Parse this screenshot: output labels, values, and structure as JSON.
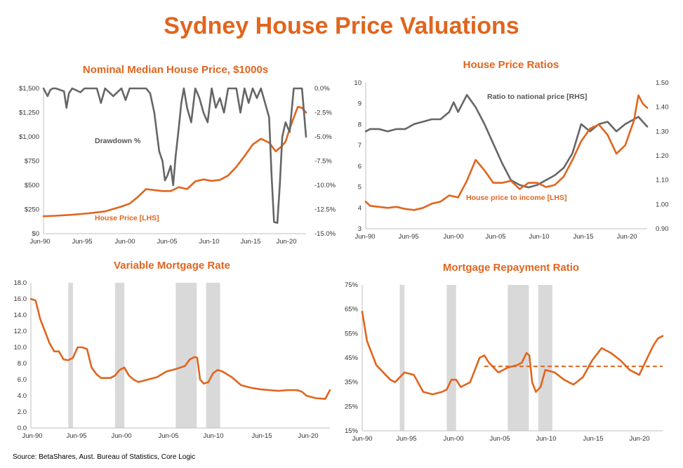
{
  "title": "Sydney House Price Valuations",
  "source": "Source: BetaShares, Aust. Bureau of Statistics, Core Logic",
  "colors": {
    "orange": "#e0651e",
    "gray": "#666666",
    "shade": "#d9d9d9",
    "axis": "#bfbfbf"
  },
  "chart_data": [
    {
      "id": "price",
      "type": "line",
      "title": "Nominal Median House Price, $1000s",
      "x_ticks": [
        "Jun-90",
        "Jun-95",
        "Jun-00",
        "Jun-05",
        "Jun-10",
        "Jun-15",
        "Jun-20"
      ],
      "x_range": [
        1990.5,
        2022.5
      ],
      "y_left_ticks": [
        "$0",
        "$250",
        "$500",
        "$750",
        "$1,000",
        "$1,250",
        "$1,500"
      ],
      "y_left_range": [
        0,
        1500
      ],
      "y_right_ticks": [
        "0.0%",
        "-2.5%",
        "-5.0%",
        "-7.5%",
        "-10.0%",
        "-12.5%",
        "-15.0%"
      ],
      "y_right_range": [
        -15,
        0
      ],
      "annotations": [
        {
          "text": "Drawdown %",
          "series": "drawdown"
        },
        {
          "text": "House Price [LHS]",
          "series": "price"
        }
      ],
      "series": [
        {
          "name": "House Price [LHS]",
          "axis": "left",
          "color": "#e0651e",
          "x": [
            1990.5,
            1992,
            1994,
            1996,
            1998,
            2000,
            2001,
            2002,
            2003,
            2004,
            2005,
            2006,
            2007,
            2008,
            2009,
            2010,
            2011,
            2012,
            2013,
            2014,
            2015,
            2016,
            2017,
            2018,
            2018.8,
            2019.5,
            2020,
            2020.5,
            2021,
            2021.5,
            2022,
            2022.5
          ],
          "y": [
            180,
            185,
            195,
            210,
            230,
            280,
            310,
            380,
            460,
            450,
            440,
            440,
            480,
            460,
            540,
            560,
            545,
            555,
            600,
            690,
            800,
            920,
            980,
            940,
            850,
            900,
            950,
            1080,
            1200,
            1310,
            1300,
            1250
          ]
        },
        {
          "name": "Drawdown %",
          "axis": "right",
          "color": "#666666",
          "x": [
            1990.5,
            1991,
            1991.3,
            1991.6,
            1992,
            1993,
            1993.3,
            1993.6,
            1994,
            1995,
            1995.5,
            1996,
            1997,
            1997.5,
            1998,
            1999,
            2000,
            2000.5,
            2001,
            2002,
            2003,
            2003.5,
            2004,
            2004.3,
            2004.6,
            2005,
            2005.3,
            2005.6,
            2006,
            2006.3,
            2006.6,
            2007,
            2007.3,
            2007.6,
            2008,
            2008.5,
            2009,
            2009.5,
            2010,
            2010.5,
            2011,
            2011.5,
            2012,
            2012.5,
            2013,
            2014,
            2014.5,
            2015,
            2015.5,
            2016,
            2016.5,
            2017,
            2017.5,
            2018,
            2018.3,
            2018.6,
            2019,
            2019.3,
            2019.6,
            2020,
            2020.5,
            2021,
            2021.5,
            2022,
            2022.5
          ],
          "y": [
            0,
            -0.8,
            -0.2,
            0,
            0,
            -0.3,
            -2.0,
            -0.5,
            0,
            -0.4,
            0,
            0,
            0,
            -1.5,
            0,
            -0.8,
            0,
            -1.2,
            0,
            0,
            0,
            -0.5,
            -2.5,
            -4.5,
            -6.5,
            -7.5,
            -9.5,
            -9.0,
            -8.0,
            -10.0,
            -7.0,
            -4.0,
            -1.5,
            0,
            -2.0,
            -3.5,
            0,
            -1.0,
            -2.5,
            -3.5,
            0,
            -2.0,
            -1.0,
            -2.5,
            0,
            0,
            -2.5,
            0,
            -1.5,
            0,
            -1.0,
            0,
            -1.5,
            -3.0,
            -9.0,
            -13.8,
            -13.9,
            -10.0,
            -5.0,
            -3.5,
            -4.5,
            0,
            0,
            0,
            -5.0
          ]
        }
      ]
    },
    {
      "id": "ratios",
      "type": "line",
      "title": "House Price Ratios",
      "x_ticks": [
        "Jun-90",
        "Jun-95",
        "Jun-00",
        "Jun-05",
        "Jun-10",
        "Jun-15",
        "Jun-20"
      ],
      "x_range": [
        1990.5,
        2022.5
      ],
      "y_left_ticks": [
        "3",
        "4",
        "5",
        "6",
        "7",
        "8",
        "9",
        "10"
      ],
      "y_left_range": [
        3,
        10
      ],
      "y_right_ticks": [
        "0.90",
        "1.00",
        "1.10",
        "1.20",
        "1.30",
        "1.40",
        "1.50"
      ],
      "y_right_range": [
        0.9,
        1.5
      ],
      "annotations": [
        {
          "text": "Ratio to national price [RHS]",
          "series": "ratio"
        },
        {
          "text": "House price to income  [LHS]",
          "series": "income"
        }
      ],
      "series": [
        {
          "name": "Ratio to national price [RHS]",
          "axis": "right",
          "color": "#666666",
          "x": [
            1990.5,
            1991,
            1992,
            1993,
            1994,
            1995,
            1996,
            1997,
            1998,
            1999,
            2000,
            2000.5,
            2001,
            2002,
            2003,
            2004,
            2005,
            2006,
            2007,
            2008,
            2009,
            2010,
            2011,
            2012,
            2013,
            2014,
            2015,
            2016,
            2017,
            2018,
            2019,
            2020,
            2021,
            2021.5,
            2022,
            2022.5
          ],
          "y": [
            1.3,
            1.31,
            1.31,
            1.3,
            1.31,
            1.31,
            1.33,
            1.34,
            1.35,
            1.35,
            1.38,
            1.42,
            1.38,
            1.45,
            1.4,
            1.33,
            1.25,
            1.17,
            1.1,
            1.08,
            1.07,
            1.08,
            1.1,
            1.12,
            1.15,
            1.21,
            1.33,
            1.3,
            1.33,
            1.34,
            1.3,
            1.33,
            1.35,
            1.36,
            1.34,
            1.32
          ]
        },
        {
          "name": "House price to income  [LHS]",
          "axis": "left",
          "color": "#e0651e",
          "x": [
            1990.5,
            1991,
            1992,
            1993,
            1994,
            1995,
            1996,
            1997,
            1998,
            1999,
            2000,
            2001,
            2002,
            2003,
            2004,
            2005,
            2006,
            2007,
            2008,
            2009,
            2010,
            2011,
            2012,
            2013,
            2014,
            2015,
            2016,
            2017,
            2018,
            2019,
            2020,
            2021,
            2021.5,
            2022,
            2022.5
          ],
          "y": [
            4.3,
            4.1,
            4.05,
            4.0,
            4.05,
            3.95,
            3.9,
            4.0,
            4.2,
            4.3,
            4.6,
            4.5,
            5.3,
            6.3,
            5.8,
            5.2,
            5.2,
            5.3,
            4.9,
            5.2,
            5.2,
            5.0,
            5.1,
            5.5,
            6.3,
            7.2,
            7.8,
            8.0,
            7.5,
            6.6,
            7.0,
            8.2,
            9.4,
            9.0,
            8.8
          ]
        }
      ]
    },
    {
      "id": "mortgage_rate",
      "type": "line",
      "title": "Variable Mortgage Rate",
      "x_ticks": [
        "Jun-90",
        "Jun-95",
        "Jun-00",
        "Jun-05",
        "Jun-10",
        "Jun-15",
        "Jun-20"
      ],
      "x_range": [
        1990.5,
        2022.5
      ],
      "y_ticks": [
        "0.0",
        "2.0",
        "4.0",
        "6.0",
        "8.0",
        "10.0",
        "12.0",
        "14.0",
        "16.0",
        "18.0"
      ],
      "y_range": [
        0,
        18
      ],
      "shaded_periods": [
        [
          1994.5,
          1995.0
        ],
        [
          1999.5,
          2000.5
        ],
        [
          2006.0,
          2008.25
        ],
        [
          2009.25,
          2010.75
        ]
      ],
      "series": [
        {
          "name": "Variable Mortgage Rate",
          "color": "#e0651e",
          "x": [
            1990.5,
            1991,
            1991.5,
            1992,
            1992.5,
            1993,
            1993.5,
            1994,
            1994.5,
            1995,
            1995.5,
            1996,
            1996.5,
            1997,
            1997.5,
            1998,
            1999,
            1999.5,
            2000,
            2000.5,
            2001,
            2001.5,
            2002,
            2003,
            2004,
            2005,
            2006,
            2006.5,
            2007,
            2007.5,
            2008,
            2008.3,
            2008.6,
            2009,
            2009.5,
            2010,
            2010.5,
            2011,
            2012,
            2013,
            2014,
            2015,
            2016,
            2017,
            2018,
            2019,
            2019.5,
            2020,
            2021,
            2022,
            2022.5
          ],
          "y": [
            16.0,
            15.8,
            13.5,
            12.0,
            10.5,
            9.5,
            9.5,
            8.5,
            8.4,
            8.7,
            10.0,
            10.0,
            9.8,
            7.5,
            6.7,
            6.2,
            6.2,
            6.5,
            7.2,
            7.5,
            6.5,
            6.0,
            5.7,
            6.0,
            6.3,
            7.0,
            7.3,
            7.5,
            7.7,
            8.5,
            8.8,
            8.7,
            6.0,
            5.5,
            5.7,
            6.8,
            7.2,
            7.0,
            6.3,
            5.3,
            5.0,
            4.8,
            4.7,
            4.6,
            4.7,
            4.7,
            4.5,
            4.0,
            3.7,
            3.6,
            4.7
          ]
        }
      ]
    },
    {
      "id": "repayment",
      "type": "line",
      "title": "Mortgage Repayment Ratio",
      "x_ticks": [
        "Jun-90",
        "Jun-95",
        "Jun-00",
        "Jun-05",
        "Jun-10",
        "Jun-15",
        "Jun-20"
      ],
      "x_range": [
        1990.5,
        2022.5
      ],
      "y_ticks": [
        "15%",
        "25%",
        "35%",
        "45%",
        "55%",
        "65%",
        "75%"
      ],
      "y_range": [
        15,
        75
      ],
      "shaded_periods": [
        [
          1994.5,
          1995.0
        ],
        [
          1999.5,
          2000.5
        ],
        [
          2006.0,
          2008.25
        ],
        [
          2009.25,
          2010.75
        ]
      ],
      "reference_line": {
        "value": 41.5,
        "x_start": 2003.5,
        "x_end": 2022.5
      },
      "series": [
        {
          "name": "Mortgage Repayment Ratio",
          "color": "#e0651e",
          "x": [
            1990.5,
            1991,
            1992,
            1993,
            1993.5,
            1994,
            1995,
            1996,
            1997,
            1998,
            1999,
            1999.5,
            2000,
            2000.5,
            2001,
            2002,
            2003,
            2003.5,
            2004,
            2005,
            2006,
            2007,
            2007.5,
            2008,
            2008.3,
            2008.6,
            2009,
            2009.5,
            2010,
            2011,
            2012,
            2013,
            2014,
            2015,
            2016,
            2017,
            2018,
            2019,
            2020,
            2021,
            2021.5,
            2022,
            2022.5
          ],
          "y": [
            64,
            52,
            42,
            38,
            36,
            35,
            39,
            38,
            31,
            30,
            31,
            32,
            36,
            36,
            33,
            35,
            45,
            46,
            43,
            39,
            41,
            42,
            43,
            47,
            46,
            35,
            31,
            33,
            40,
            39,
            36,
            34,
            37,
            44,
            49,
            47,
            44,
            40,
            38,
            46,
            50,
            53,
            54
          ]
        }
      ]
    }
  ]
}
